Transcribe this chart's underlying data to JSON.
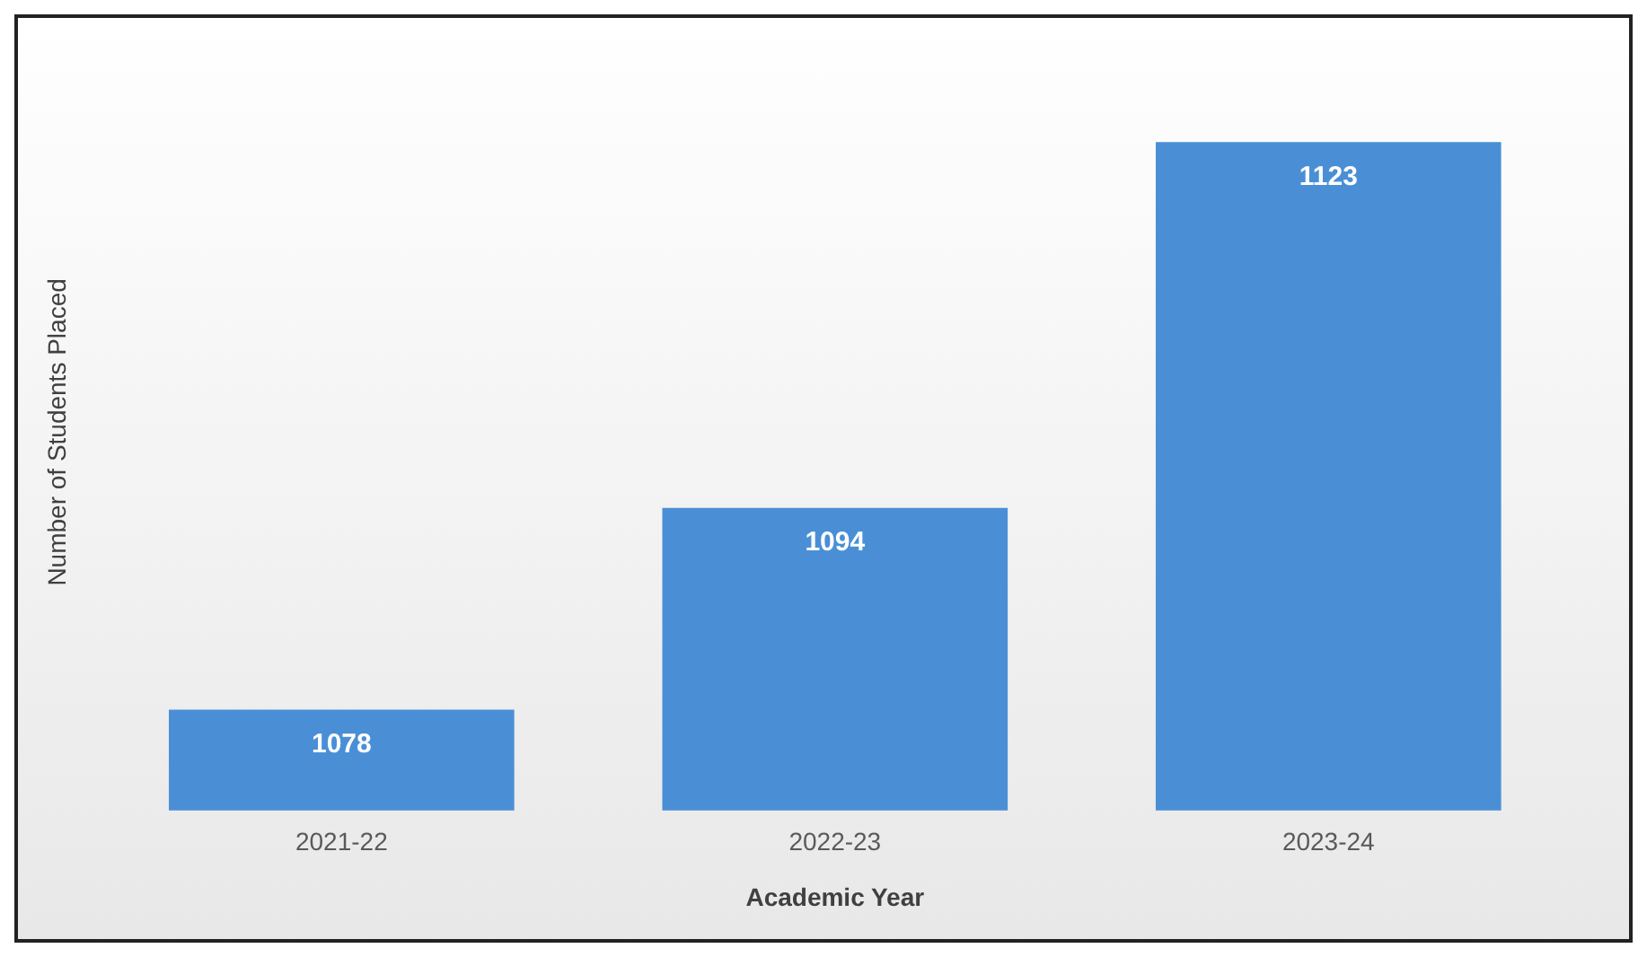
{
  "chart_data": {
    "type": "bar",
    "xlabel": "Academic Year",
    "ylabel": "Number of Students Placed",
    "categories": [
      "2021-22",
      "2022-23",
      "2023-24"
    ],
    "values": [
      1078,
      1094,
      1123
    ],
    "color": "#4a8fd6",
    "data_labels": true,
    "tick_labels": "x",
    "grid": false,
    "legend": false
  }
}
